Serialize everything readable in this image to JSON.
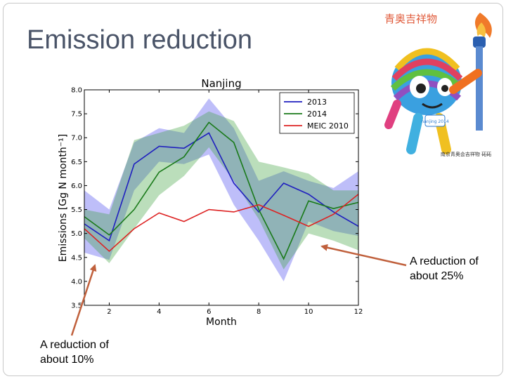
{
  "slide": {
    "title": "Emission reduction",
    "annotations": {
      "right": [
        "A reduction of",
        "about 25%"
      ],
      "left": [
        "A reduction of",
        "about 10%"
      ]
    },
    "arrow_color": "#c0603c"
  },
  "mascot": {
    "logo_text": "青奥吉祥物",
    "badge_text": "nanjing 2014",
    "caption": "南京青奥会吉祥物 砳砳"
  },
  "chart_data": {
    "type": "line",
    "title": "Nanjing",
    "xlabel": "Month",
    "ylabel": "Emissions [Gg N month⁻¹]",
    "xlim": [
      1,
      12
    ],
    "ylim": [
      3.5,
      8.0
    ],
    "xticks": [
      2,
      4,
      6,
      8,
      10,
      12
    ],
    "yticks": [
      3.5,
      4.0,
      4.5,
      5.0,
      5.5,
      6.0,
      6.5,
      7.0,
      7.5,
      8.0
    ],
    "x": [
      1,
      2,
      3,
      4,
      5,
      6,
      7,
      8,
      9,
      10,
      11,
      12
    ],
    "series": [
      {
        "name": "2013",
        "color": "#1f1fbf",
        "values": [
          5.2,
          4.85,
          6.45,
          6.82,
          6.78,
          7.1,
          6.05,
          5.45,
          6.05,
          5.82,
          5.45,
          5.15
        ],
        "band_upper": [
          5.9,
          5.5,
          6.9,
          7.2,
          7.1,
          7.82,
          7.2,
          6.1,
          6.3,
          6.1,
          5.95,
          6.3
        ],
        "band_lower": [
          4.6,
          4.45,
          5.9,
          6.5,
          6.45,
          6.65,
          5.6,
          4.85,
          4.0,
          5.25,
          5.05,
          4.95
        ]
      },
      {
        "name": "2014",
        "color": "#1a7a1a",
        "values": [
          5.35,
          4.97,
          5.5,
          6.28,
          6.6,
          7.32,
          6.9,
          5.5,
          4.47,
          5.68,
          5.52,
          5.65
        ],
        "band_upper": [
          5.5,
          5.4,
          6.95,
          7.1,
          7.25,
          7.55,
          7.35,
          6.5,
          6.38,
          6.25,
          5.9,
          5.9
        ],
        "band_lower": [
          4.9,
          4.38,
          5.1,
          5.8,
          6.2,
          6.8,
          6.1,
          5.3,
          4.25,
          5.0,
          4.85,
          4.65
        ]
      },
      {
        "name": "MEIC 2010",
        "color": "#dd2222",
        "values": [
          5.1,
          4.63,
          5.1,
          5.43,
          5.25,
          5.5,
          5.45,
          5.6,
          5.38,
          5.15,
          5.4,
          5.82
        ]
      }
    ]
  }
}
